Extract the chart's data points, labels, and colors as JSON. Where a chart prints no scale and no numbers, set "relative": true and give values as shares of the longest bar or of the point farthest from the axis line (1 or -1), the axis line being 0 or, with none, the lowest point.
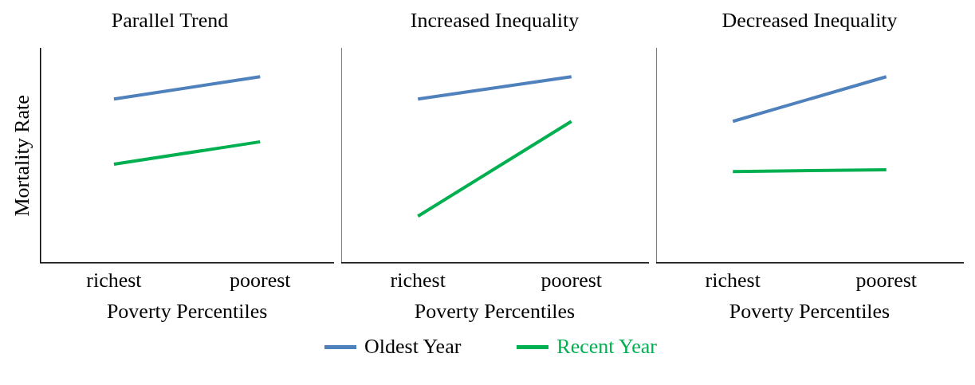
{
  "chart_data": [
    {
      "type": "line",
      "title": "Parallel Trend",
      "xlabel": "Poverty Percentiles",
      "ylabel": "Mortality Rate",
      "categories": [
        "richest",
        "poorest"
      ],
      "relative": true,
      "grid": false,
      "legend": "bottom",
      "marker": "none",
      "series": [
        {
          "name": "Oldest Year",
          "color": "#4f81bd",
          "values": [
            0.88,
            1
          ]
        },
        {
          "name": "Recent Year",
          "color": "#00b050",
          "values": [
            0.53,
            0.65
          ]
        }
      ]
    },
    {
      "type": "line",
      "title": "Increased Inequality",
      "xlabel": "Poverty Percentiles",
      "categories": [
        "richest",
        "poorest"
      ],
      "relative": true,
      "grid": false,
      "marker": "none",
      "series": [
        {
          "color": "#4f81bd",
          "values": [
            0.88,
            1
          ]
        },
        {
          "color": "#00b050",
          "values": [
            0.25,
            0.76
          ]
        }
      ]
    },
    {
      "type": "line",
      "title": "Decreased Inequality",
      "xlabel": "Poverty Percentiles",
      "categories": [
        "richest",
        "poorest"
      ],
      "relative": true,
      "grid": false,
      "marker": "none",
      "series": [
        {
          "color": "#4f81bd",
          "values": [
            0.76,
            1
          ]
        },
        {
          "color": "#00b050",
          "values": [
            0.49,
            0.5
          ]
        }
      ]
    }
  ]
}
